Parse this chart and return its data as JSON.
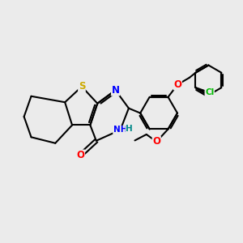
{
  "bg_color": "#ebebeb",
  "atom_colors": {
    "S": "#ccaa00",
    "N": "#0000ff",
    "O": "#ff0000",
    "Cl": "#00bb00",
    "H": "#008888",
    "C": "#000000"
  },
  "bond_width": 1.5,
  "font_size": 7.5
}
